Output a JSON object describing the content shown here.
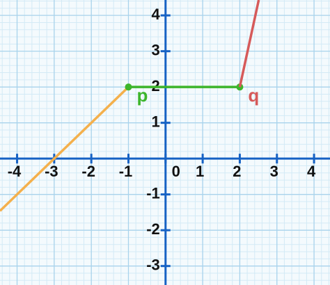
{
  "chart_data": {
    "type": "line",
    "xlim": [
      -4.46,
      4.43
    ],
    "ylim": [
      -3.53,
      4.43
    ],
    "xticks": [
      -4,
      -3,
      -2,
      -1,
      0,
      1,
      2,
      3,
      4
    ],
    "yticks": [
      -3,
      -2,
      -1,
      1,
      2,
      3,
      4
    ],
    "grid": true,
    "series": [
      {
        "color": "#f4b04c",
        "x": [
          -4.46,
          -1
        ],
        "values": [
          -1.46,
          2
        ]
      },
      {
        "color": "#3db52b",
        "x": [
          -1,
          2
        ],
        "values": [
          2,
          2
        ],
        "markers": true
      },
      {
        "color": "#d65a5a",
        "x": [
          2,
          2.51
        ],
        "values": [
          2,
          4.43
        ]
      }
    ],
    "annotations": [
      {
        "text": "p",
        "x": -1,
        "y": 2,
        "color": "#3db52b"
      },
      {
        "text": "q",
        "x": 2,
        "y": 2,
        "color": "#d65a5a"
      }
    ]
  }
}
